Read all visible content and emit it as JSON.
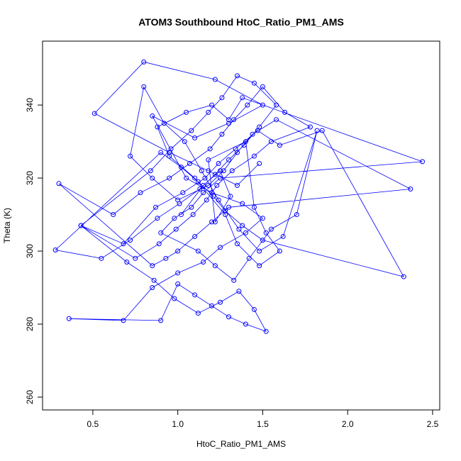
{
  "chart_data": {
    "type": "line",
    "markers": true,
    "title": "ATOM3 Southbound HtoC_Ratio_PM1_AMS",
    "x_label": "HtoC_Ratio_PM1_AMS",
    "y_label": "Theta (K)",
    "color": "#0000ff",
    "xlim": [
      0.204,
      2.542
    ],
    "ylim": [
      256.5,
      357.5
    ],
    "xticks": [
      0.5,
      {
        "value": 1,
        "label": "1.0"
      },
      1.5,
      {
        "value": 2,
        "label": "2.0"
      },
      2.5
    ],
    "yticks": [
      260,
      280,
      300,
      320,
      340
    ],
    "x": [
      1.02,
      1.15,
      1.25,
      1.31,
      1.22,
      1.18,
      1.4,
      1.45,
      1.52,
      1.6,
      1.48,
      1.35,
      1.28,
      1.1,
      0.95,
      0.88,
      1.05,
      1.2,
      1.3,
      1.38,
      2.44,
      1.25,
      1.15,
      1.08,
      0.98,
      0.9,
      1.12,
      1.22,
      1.33,
      1.42,
      1.55,
      1.7,
      1.82,
      1.62,
      1.48,
      1.36,
      1.24,
      1.14,
      1.04,
      0.92,
      0.8,
      0.72,
      0.85,
      1.0,
      1.18,
      1.27,
      1.35,
      1.44,
      1.58,
      2.37,
      1.3,
      1.2,
      1.1,
      1.0,
      0.93,
      0.85,
      0.3,
      0.62,
      0.78,
      0.95,
      1.07,
      1.19,
      1.26,
      1.33,
      1.41,
      1.5,
      1.63,
      1.78,
      1.55,
      1.45,
      1.32,
      1.23,
      1.17,
      1.09,
      0.99,
      0.89,
      0.75,
      0.43,
      0.68,
      0.87,
      1.03,
      1.16,
      1.24,
      1.34,
      1.47,
      1.6,
      1.85,
      2.33,
      1.5,
      1.38,
      1.28,
      1.21,
      1.12,
      1.02,
      0.9,
      0.28,
      0.55,
      0.72,
      0.88,
      1.01,
      1.13,
      1.22,
      1.3,
      1.39,
      1.48,
      1.58,
      1.45,
      1.35,
      1.26,
      1.18,
      1.08,
      0.96,
      0.84,
      0.43,
      0.7,
      0.86,
      0.98,
      1.12,
      1.25,
      1.36,
      1.45,
      1.52,
      1.4,
      1.3,
      1.2,
      1.1,
      1.0,
      0.9,
      0.36,
      0.68,
      0.85,
      1.0,
      1.15,
      1.25,
      1.4,
      1.5,
      1.38,
      1.2,
      1.05,
      0.85,
      1.1,
      1.3,
      1.5,
      1.22,
      0.8,
      0.51,
      0.95,
      1.18,
      1.35,
      1.48
    ],
    "values": [
      310,
      318,
      322,
      315,
      308,
      325,
      330,
      312,
      305,
      300,
      296,
      302,
      310,
      320,
      326,
      334,
      338,
      340,
      336,
      342,
      324.5,
      320,
      316,
      312,
      309,
      305,
      300,
      296,
      292,
      298,
      306,
      310,
      333,
      304,
      300,
      306,
      314,
      322,
      330,
      335,
      345,
      326,
      320,
      314,
      318,
      322,
      327,
      332,
      336,
      317,
      312,
      308,
      304,
      300,
      298,
      296,
      318.5,
      310,
      316,
      320,
      324,
      328,
      332,
      336,
      340,
      345,
      338,
      334,
      330,
      326,
      322,
      318,
      314,
      310,
      306,
      302,
      298,
      307,
      302,
      312,
      316,
      320,
      324,
      328,
      333,
      329,
      333,
      293,
      303,
      307,
      311,
      315,
      319,
      323,
      327,
      300.3,
      298,
      303,
      309,
      313,
      317,
      321,
      325,
      329,
      334,
      340,
      346,
      348,
      342,
      338,
      333,
      328,
      322,
      307,
      297,
      292,
      287,
      283,
      286,
      289,
      284,
      278,
      280,
      282,
      285,
      288,
      291,
      281,
      281.5,
      281,
      290,
      294,
      297,
      301,
      305,
      309,
      313,
      316,
      320,
      337,
      331,
      335,
      340,
      347,
      351.8,
      337.7,
      327,
      322,
      318,
      324
    ]
  }
}
